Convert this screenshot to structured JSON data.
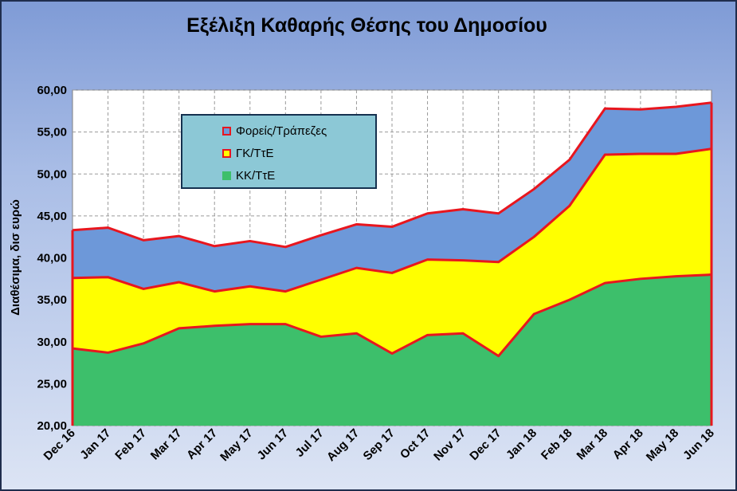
{
  "chart_data": {
    "type": "area",
    "title": "Εξέλιξη Καθαρής Θέσης του Δημοσίου",
    "ylabel": "Διαθέσιμα, δισ ευρώ",
    "ylim": [
      20,
      60
    ],
    "ytick_step": 5,
    "y_ticks": [
      "20,00",
      "25,00",
      "30,00",
      "35,00",
      "40,00",
      "45,00",
      "50,00",
      "55,00",
      "60,00"
    ],
    "categories": [
      "Dec 16",
      "Jan 17",
      "Feb 17",
      "Mar 17",
      "Apr 17",
      "May 17",
      "Jun 17",
      "Jul 17",
      "Aug 17",
      "Sep 17",
      "Oct 17",
      "Nov 17",
      "Dec 17",
      "Jan 18",
      "Feb 18",
      "Mar 18",
      "Apr 18",
      "May 18",
      "Jun 18"
    ],
    "stacked_cumulative": true,
    "series": [
      {
        "name": "ΚΚ/ΤτΕ",
        "color": "#3dbf6b",
        "values": [
          29.2,
          28.7,
          29.8,
          31.6,
          31.9,
          32.1,
          32.1,
          30.6,
          31.0,
          28.6,
          30.8,
          31.0,
          28.3,
          33.3,
          35.0,
          37.0,
          37.5,
          37.8,
          38.0
        ]
      },
      {
        "name": "ΓΚ/ΤτΕ",
        "color": "#ffff00",
        "values": [
          37.6,
          37.7,
          36.3,
          37.1,
          36.0,
          36.6,
          36.0,
          37.4,
          38.8,
          38.2,
          39.8,
          39.7,
          39.5,
          42.5,
          46.2,
          52.3,
          52.4,
          52.4,
          53.0
        ]
      },
      {
        "name": "Φορείς/Τράπεζες",
        "color": "#6d98d9",
        "values": [
          43.3,
          43.6,
          42.1,
          42.6,
          41.4,
          42.0,
          41.3,
          42.7,
          44.0,
          43.7,
          45.3,
          45.8,
          45.3,
          48.2,
          51.7,
          57.8,
          57.7,
          58.0,
          58.5
        ]
      }
    ],
    "edge_color": "#e8161e",
    "grid": true,
    "legend_position": "top-left inside plot"
  },
  "legend_order": [
    2,
    1,
    0
  ]
}
